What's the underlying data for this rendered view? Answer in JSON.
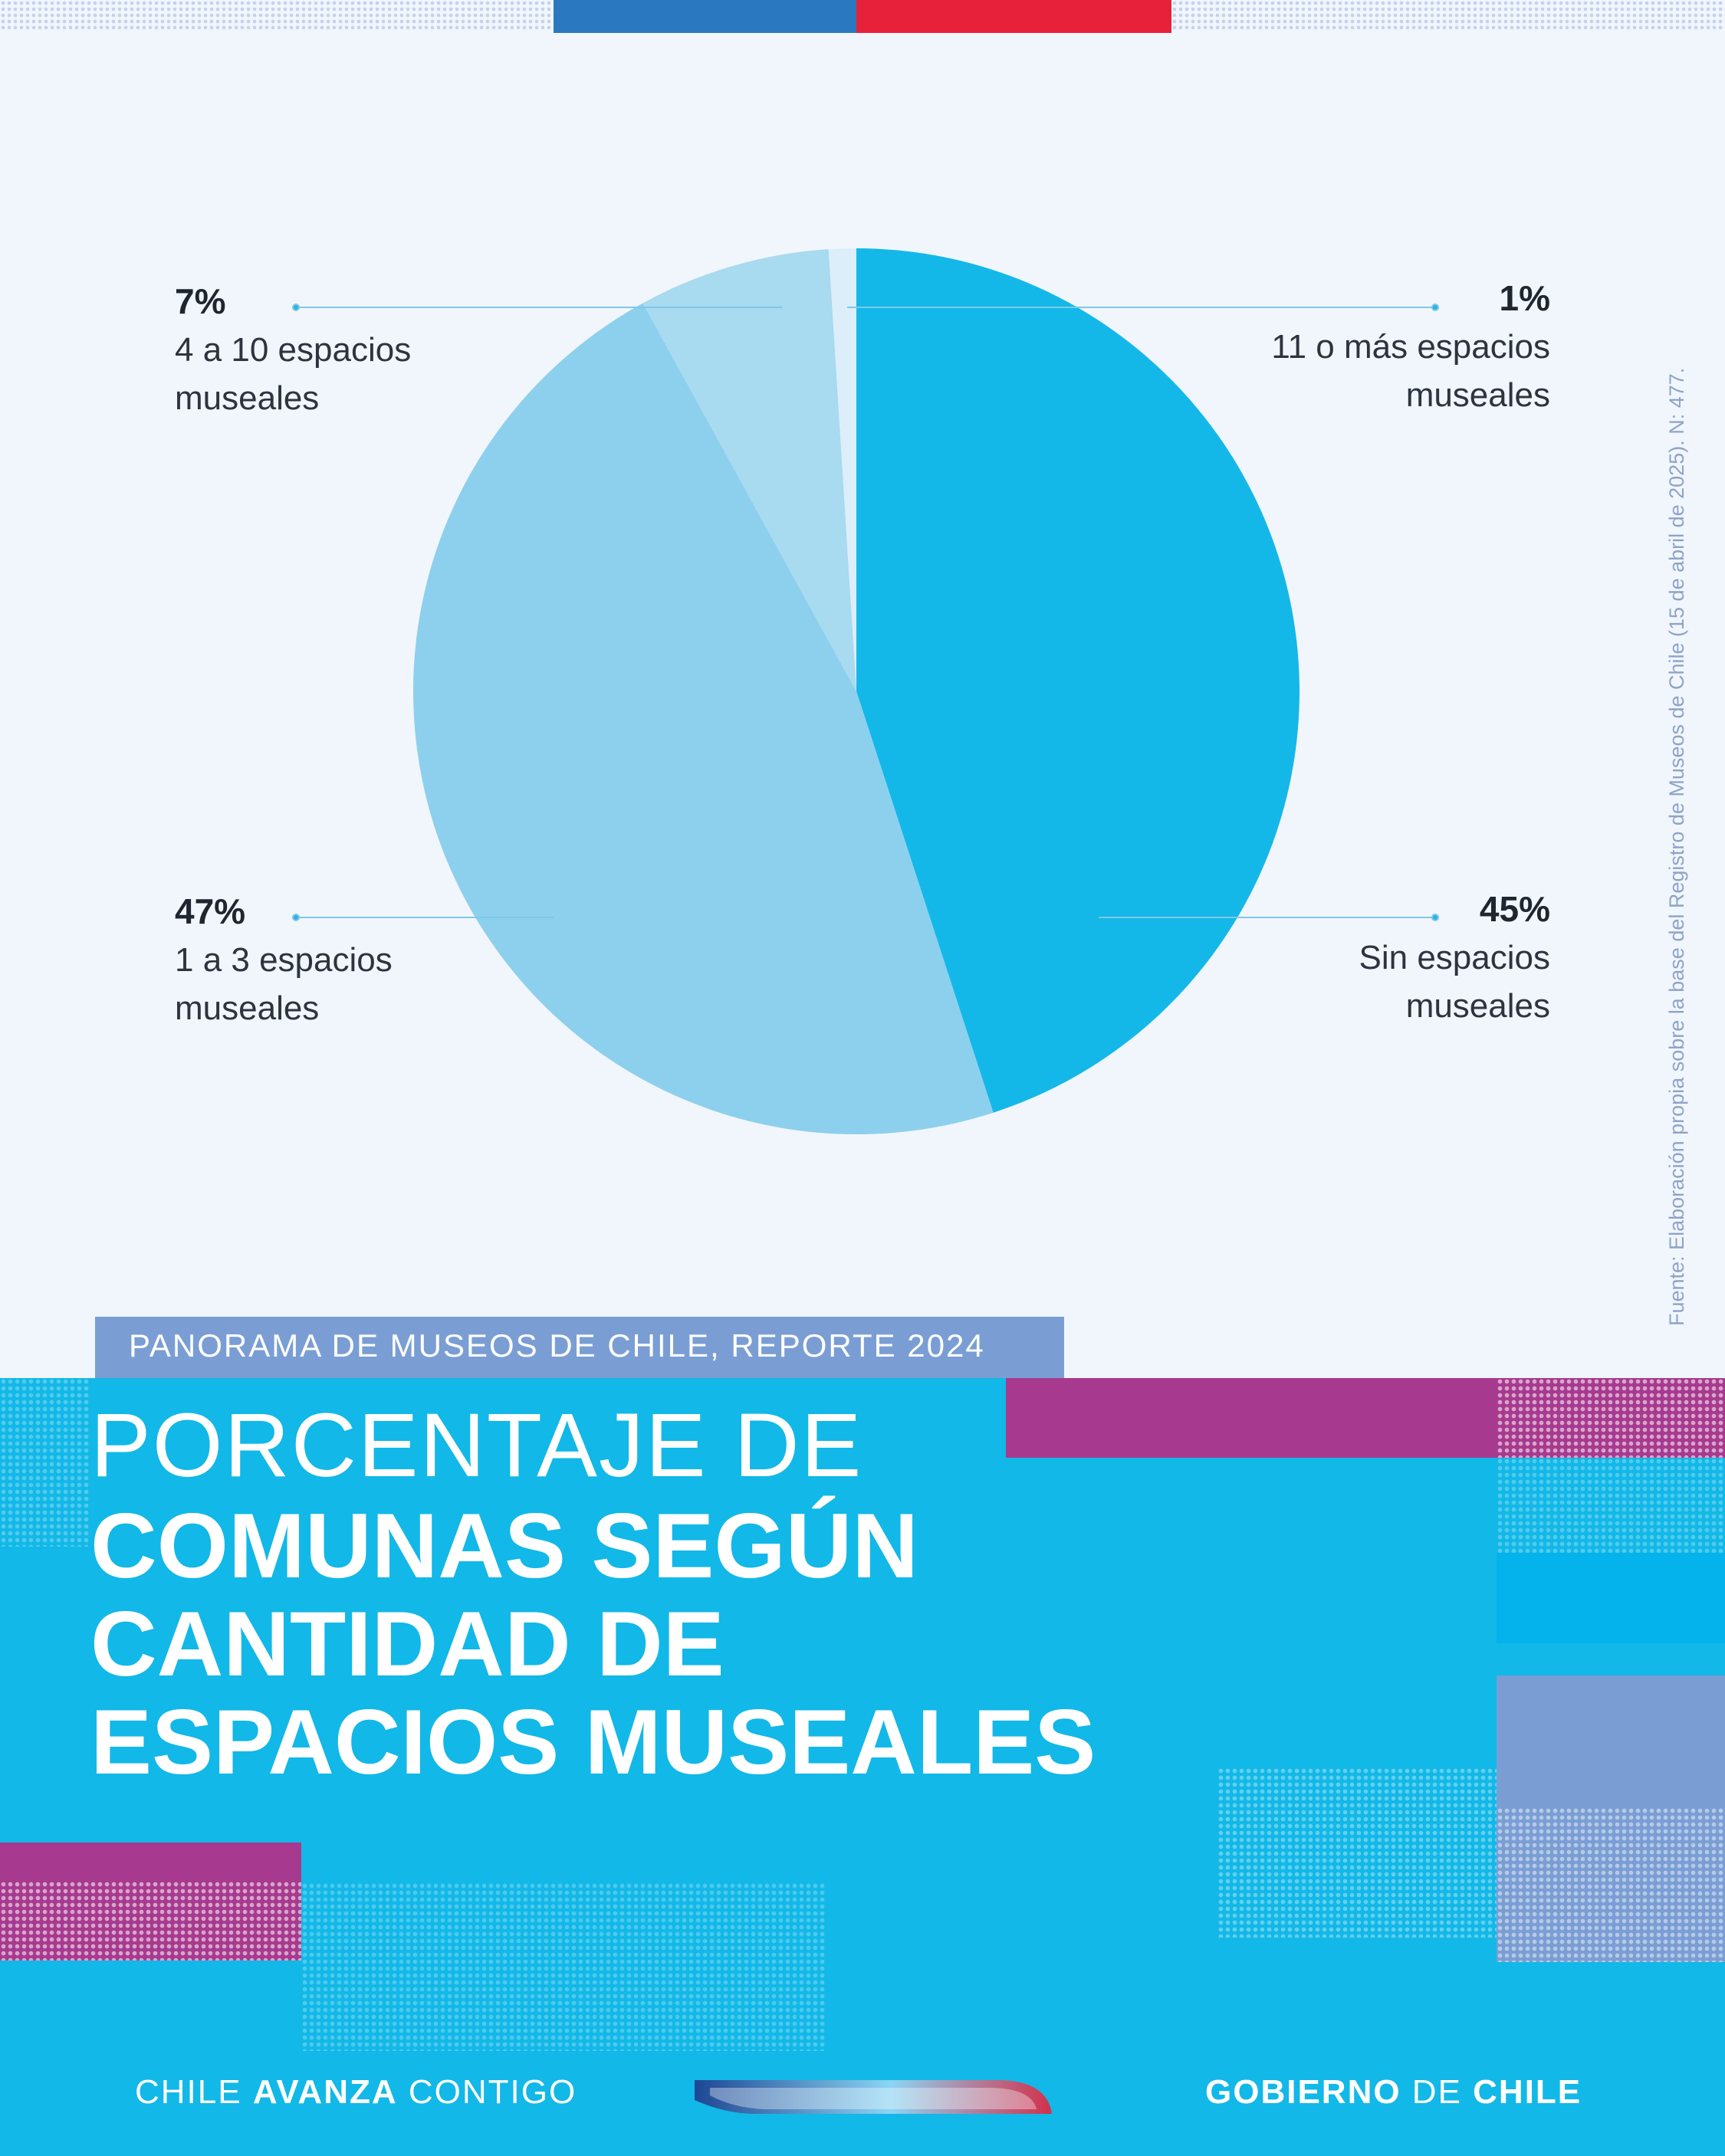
{
  "header": {
    "flag_colors": [
      "#2a79c0",
      "#e8213a"
    ]
  },
  "chart_data": {
    "type": "pie",
    "slices": [
      {
        "label": "Sin espacios museales",
        "value": 45,
        "pct_label": "45%",
        "color": "#14b8e8"
      },
      {
        "label": "1 a 3 espacios museales",
        "value": 47,
        "pct_label": "47%",
        "color": "#8dd0ed"
      },
      {
        "label": "4 a 10 espacios museales",
        "value": 7,
        "pct_label": "7%",
        "color": "#a8daf0"
      },
      {
        "label": "11 o más espacios museales",
        "value": 1,
        "pct_label": "1%",
        "color": "#dbeef9"
      }
    ],
    "label_lines": {
      "s45": [
        "Sin espacios",
        "museales"
      ],
      "s47": [
        "1 a 3 espacios",
        "museales"
      ],
      "s7": [
        "4 a 10 espacios",
        "museales"
      ],
      "s1": [
        "11 o más espacios",
        "museales"
      ]
    },
    "source": "Fuente: Elaboración propia sobre la base del Registro de Museos de Chile (15 de abril de 2025). N: 477."
  },
  "report": {
    "series_title": "PANORAMA DE MUSEOS DE CHILE, REPORTE 2024"
  },
  "title": {
    "line1": "PORCENTAJE DE",
    "line2": "COMUNAS SEGÚN",
    "line3": "CANTIDAD DE",
    "line4": "ESPACIOS MUSEALES"
  },
  "footer": {
    "left_a": "CHILE ",
    "left_b": "AVANZA",
    "left_c": " CONTIGO",
    "right_a": "GOBIERNO",
    "right_b": " DE ",
    "right_c": "CHILE"
  },
  "colors": {
    "background": "#f1f6fc",
    "bottom_panel": "#12b8e7",
    "magenta": "#a73a8f",
    "lavender": "#7a9ed4"
  }
}
